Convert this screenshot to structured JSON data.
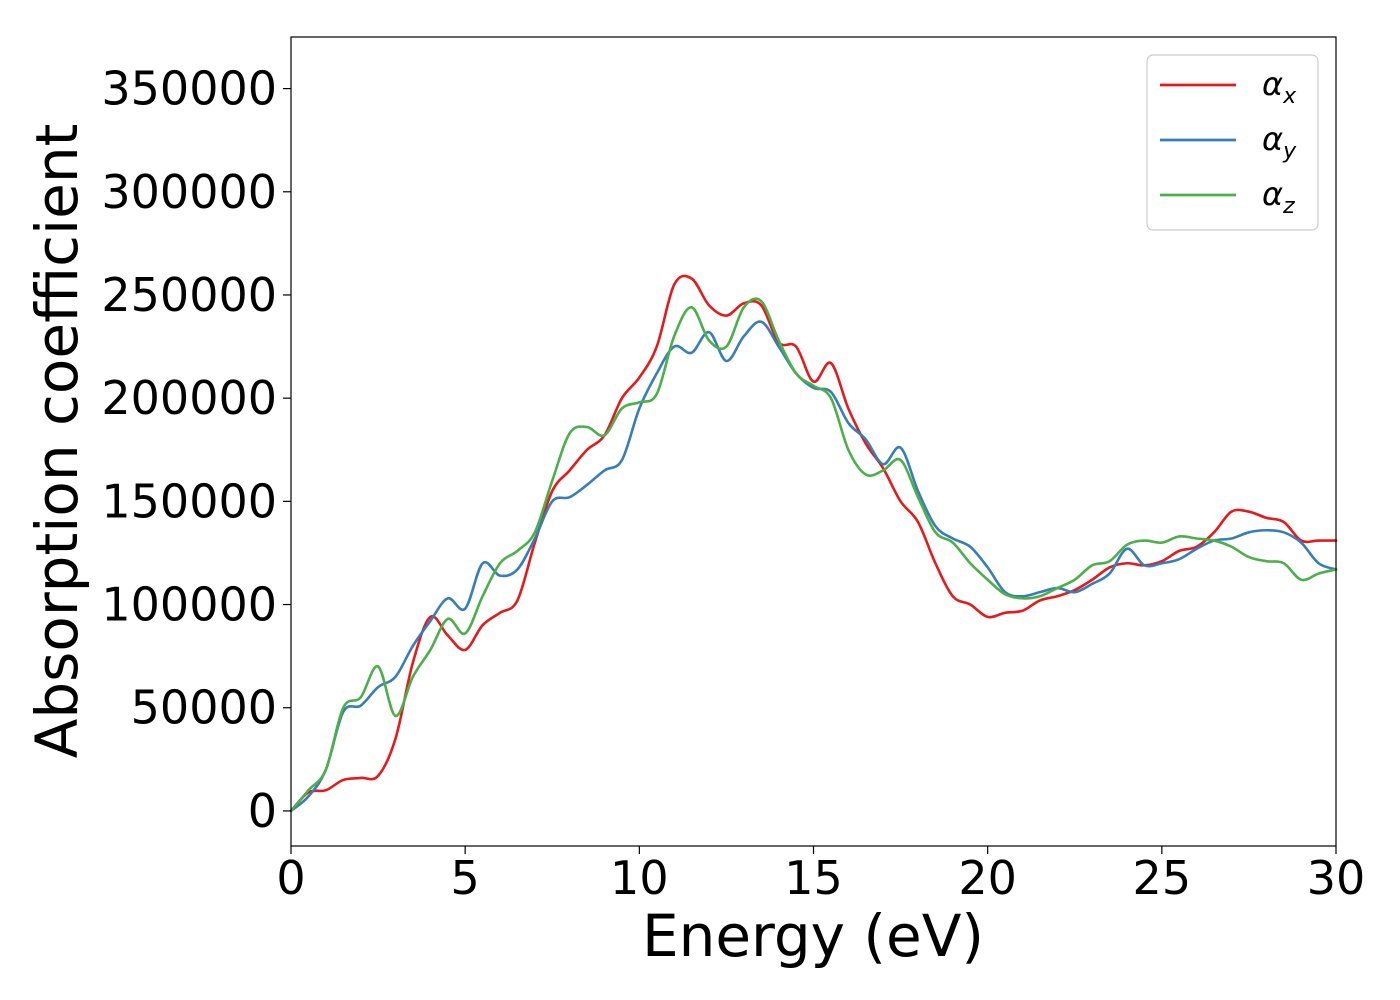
{
  "chart_data": {
    "type": "line",
    "xlabel": "Energy (eV)",
    "ylabel": "Absorption coefficient",
    "xlim": [
      0,
      30
    ],
    "ylim": [
      -17000,
      375000
    ],
    "x_ticks": [
      "0",
      "5",
      "10",
      "15",
      "20",
      "25",
      "30"
    ],
    "y_ticks": [
      "0",
      "50000",
      "100000",
      "150000",
      "200000",
      "250000",
      "300000",
      "350000"
    ],
    "grid": false,
    "legend_position": "top-right",
    "series": [
      {
        "name": "αx",
        "symbol": "α",
        "subscript": "x",
        "color": "#e41a1c",
        "x": [
          0,
          0.5,
          1,
          1.5,
          2,
          2.5,
          3,
          3.5,
          4,
          4.5,
          5,
          5.5,
          6,
          6.5,
          7,
          7.5,
          8,
          8.5,
          9,
          9.5,
          10,
          10.5,
          11,
          11.5,
          12,
          12.5,
          13,
          13.5,
          14,
          14.5,
          15,
          15.5,
          16,
          16.5,
          17,
          17.5,
          18,
          18.5,
          19,
          19.5,
          20,
          20.5,
          21,
          21.5,
          22,
          22.5,
          23,
          23.5,
          24,
          24.5,
          25,
          25.5,
          26,
          26.5,
          27,
          27.5,
          28,
          28.5,
          29,
          29.5,
          30
        ],
        "y": [
          0,
          9000,
          10000,
          15000,
          16000,
          17000,
          35000,
          72000,
          94000,
          85000,
          78000,
          90000,
          96000,
          102000,
          130000,
          155000,
          165000,
          175000,
          182000,
          200000,
          210000,
          225000,
          255000,
          258000,
          245000,
          240000,
          246000,
          245000,
          227000,
          225000,
          208000,
          217000,
          195000,
          178000,
          166000,
          150000,
          140000,
          120000,
          104000,
          100000,
          94000,
          96000,
          97000,
          102000,
          104000,
          107000,
          112000,
          118000,
          120000,
          119000,
          121000,
          126000,
          128000,
          135000,
          145000,
          145000,
          142000,
          140000,
          131000,
          131000,
          131000
        ]
      },
      {
        "name": "αy",
        "symbol": "α",
        "subscript": "y",
        "color": "#377eb8",
        "x": [
          0,
          0.5,
          1,
          1.5,
          2,
          2.5,
          3,
          3.5,
          4,
          4.5,
          5,
          5.5,
          6,
          6.5,
          7,
          7.5,
          8,
          8.5,
          9,
          9.5,
          10,
          10.5,
          11,
          11.5,
          12,
          12.5,
          13,
          13.5,
          14,
          14.5,
          15,
          15.5,
          16,
          16.5,
          17,
          17.5,
          18,
          18.5,
          19,
          19.5,
          20,
          20.5,
          21,
          21.5,
          22,
          22.5,
          23,
          23.5,
          24,
          24.5,
          25,
          25.5,
          26,
          26.5,
          27,
          27.5,
          28,
          28.5,
          29,
          29.5,
          30
        ],
        "y": [
          0,
          7000,
          20000,
          48000,
          51000,
          60000,
          65000,
          80000,
          92000,
          103000,
          98000,
          120000,
          114000,
          117000,
          132000,
          150000,
          152000,
          158000,
          165000,
          170000,
          195000,
          212000,
          225000,
          222000,
          232000,
          218000,
          230000,
          237000,
          225000,
          212000,
          205000,
          203000,
          188000,
          180000,
          168000,
          176000,
          155000,
          138000,
          132000,
          128000,
          118000,
          106000,
          104000,
          106000,
          108000,
          106000,
          110000,
          115000,
          127000,
          119000,
          120000,
          122000,
          127000,
          131000,
          132000,
          135000,
          136000,
          135000,
          130000,
          120000,
          117000
        ]
      },
      {
        "name": "αz",
        "symbol": "α",
        "subscript": "z",
        "color": "#4daf4a",
        "x": [
          0,
          0.5,
          1,
          1.5,
          2,
          2.5,
          3,
          3.5,
          4,
          4.5,
          5,
          5.5,
          6,
          6.5,
          7,
          7.5,
          8,
          8.5,
          9,
          9.5,
          10,
          10.5,
          11,
          11.5,
          12,
          12.5,
          13,
          13.5,
          14,
          14.5,
          15,
          15.5,
          16,
          16.5,
          17,
          17.5,
          18,
          18.5,
          19,
          19.5,
          20,
          20.5,
          21,
          21.5,
          22,
          22.5,
          23,
          23.5,
          24,
          24.5,
          25,
          25.5,
          26,
          26.5,
          27,
          27.5,
          28,
          28.5,
          29,
          29.5,
          30
        ],
        "y": [
          0,
          10000,
          20000,
          50000,
          55000,
          70000,
          46000,
          65000,
          78000,
          93000,
          86000,
          104000,
          120000,
          126000,
          135000,
          160000,
          183000,
          186000,
          182000,
          195000,
          198000,
          202000,
          230000,
          244000,
          228000,
          225000,
          244000,
          247000,
          228000,
          212000,
          206000,
          200000,
          175000,
          163000,
          165000,
          170000,
          152000,
          135000,
          130000,
          120000,
          112000,
          105000,
          103000,
          104000,
          108000,
          112000,
          119000,
          121000,
          129000,
          131000,
          130000,
          133000,
          132000,
          131000,
          128000,
          123000,
          121000,
          120000,
          112000,
          115000,
          117000
        ]
      }
    ]
  }
}
